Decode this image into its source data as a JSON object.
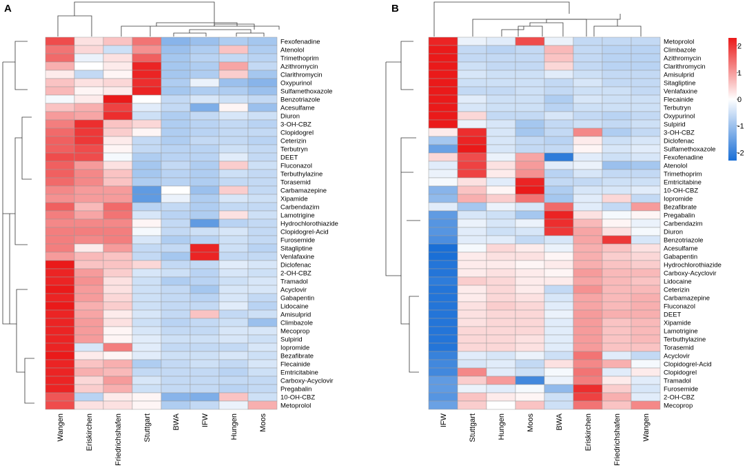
{
  "chart_data": [
    {
      "type": "heatmap",
      "panel_label": "A",
      "scale_range": [
        -2.3,
        2.3
      ],
      "columns": [
        "Wangen",
        "Eriskirchen",
        "Friedrichshafen",
        "Stuttgart",
        "BWA",
        "IFW",
        "Hungen",
        "Moos"
      ],
      "rows": [
        "Fexofenadine",
        "Atenolol",
        "Trimethoprim",
        "Azithromycin",
        "Clarithromycin",
        "Oxypurinol",
        "Sulfamethoxazole",
        "Benzotriazole",
        "Acesulfame",
        "Diuron",
        "3-OH-CBZ",
        "Clopidogrel",
        "Ceterizin",
        "Terbutryn",
        "DEET",
        "Fluconazol",
        "Terbuthylazine",
        "Torasemid",
        "Carbamazepine",
        "Xipamide",
        "Carbendazim",
        "Lamotrigine",
        "Hydrochlorothiazide",
        "Clopidogrel-Acid",
        "Furosemide",
        "Sitagliptine",
        "Venlafaxine",
        "Diclofenac",
        "2-OH-CBZ",
        "Tramadol",
        "Acyclovir",
        "Gabapentin",
        "Lidocaine",
        "Amisulprid",
        "Climbazole",
        "Mecoprop",
        "Sulpirid",
        "Iopromide",
        "Bezafibrate",
        "Flecainide",
        "Emtricitabine",
        "Carboxy-Acyclovir",
        "Pregabalin",
        "10-OH-CBZ",
        "Metoprolol"
      ],
      "values": [
        [
          1.8,
          0.3,
          0.6,
          1.4,
          -1.2,
          -1.0,
          -0.8,
          -0.9
        ],
        [
          1.4,
          0.4,
          -0.5,
          1.1,
          -1.0,
          -0.8,
          0.6,
          -0.8
        ],
        [
          1.5,
          -0.2,
          0.3,
          1.6,
          -0.9,
          -0.7,
          -0.6,
          -0.7
        ],
        [
          0.8,
          0.0,
          0.2,
          2.2,
          -0.9,
          -0.8,
          0.9,
          -0.6
        ],
        [
          0.2,
          -0.6,
          0.1,
          2.2,
          -0.9,
          -0.8,
          0.5,
          -0.9
        ],
        [
          0.6,
          0.3,
          0.4,
          2.1,
          -0.8,
          -0.2,
          -1.0,
          -1.2
        ],
        [
          0.7,
          0.1,
          0.2,
          2.2,
          -0.9,
          -0.8,
          -0.8,
          -1.0
        ],
        [
          -0.1,
          0.2,
          2.3,
          0.0,
          -0.6,
          -0.4,
          -0.5,
          -0.6
        ],
        [
          0.6,
          0.8,
          1.9,
          -0.3,
          -0.6,
          -1.3,
          0.1,
          -1.0
        ],
        [
          1.0,
          0.9,
          2.1,
          -0.5,
          -0.8,
          -0.6,
          -0.4,
          -0.5
        ],
        [
          1.3,
          2.1,
          0.6,
          0.4,
          -0.8,
          -0.7,
          -0.6,
          -0.7
        ],
        [
          1.5,
          2.0,
          0.5,
          0.1,
          -0.8,
          -0.7,
          -0.6,
          -0.6
        ],
        [
          1.6,
          2.0,
          0.2,
          -0.6,
          -0.8,
          -0.6,
          -0.6,
          -0.7
        ],
        [
          1.6,
          1.8,
          0.1,
          -0.6,
          -0.7,
          -0.7,
          -0.5,
          -0.6
        ],
        [
          1.8,
          1.8,
          -0.1,
          -0.8,
          -0.7,
          -0.7,
          -0.3,
          -0.6
        ],
        [
          1.6,
          1.0,
          0.3,
          -0.9,
          -0.6,
          -0.8,
          0.5,
          -0.5
        ],
        [
          1.6,
          1.2,
          0.6,
          -0.9,
          -0.7,
          -0.8,
          -0.5,
          -0.6
        ],
        [
          1.5,
          1.2,
          0.6,
          -0.8,
          -0.7,
          -0.8,
          -0.6,
          -0.6
        ],
        [
          1.2,
          1.0,
          1.0,
          -1.6,
          0.0,
          -1.0,
          0.5,
          -0.6
        ],
        [
          1.1,
          1.0,
          1.0,
          -1.6,
          -0.2,
          -0.8,
          -0.4,
          -0.5
        ],
        [
          1.6,
          0.7,
          1.5,
          -0.7,
          -0.6,
          -0.8,
          -0.6,
          -0.6
        ],
        [
          1.3,
          0.9,
          1.4,
          -0.4,
          -0.7,
          -0.8,
          0.3,
          -0.5
        ],
        [
          1.2,
          1.2,
          1.2,
          0.1,
          -0.6,
          -1.6,
          -0.7,
          -0.6
        ],
        [
          1.3,
          1.3,
          1.3,
          -0.1,
          -0.6,
          -0.5,
          -0.4,
          -0.6
        ],
        [
          1.3,
          1.2,
          1.3,
          -0.4,
          -0.8,
          -0.7,
          -0.5,
          -0.6
        ],
        [
          1.3,
          0.2,
          1.0,
          -0.6,
          -0.6,
          2.2,
          -0.5,
          -0.7
        ],
        [
          1.0,
          0.7,
          0.6,
          -0.6,
          -0.9,
          2.2,
          -0.6,
          -0.6
        ],
        [
          2.3,
          0.6,
          0.6,
          0.4,
          -0.6,
          -0.6,
          -0.3,
          -0.4
        ],
        [
          2.2,
          1.0,
          0.5,
          -0.4,
          -0.5,
          -0.7,
          -0.4,
          -0.5
        ],
        [
          2.2,
          1.1,
          0.3,
          -0.5,
          -0.8,
          -0.7,
          -0.5,
          -0.4
        ],
        [
          2.3,
          1.0,
          0.3,
          -0.5,
          -0.6,
          -0.9,
          -0.4,
          -0.4
        ],
        [
          2.2,
          1.0,
          0.4,
          -0.5,
          -0.6,
          -0.7,
          -0.4,
          -0.6
        ],
        [
          2.3,
          0.8,
          0.5,
          -0.5,
          -0.6,
          -0.6,
          -0.3,
          -0.7
        ],
        [
          2.2,
          0.9,
          0.2,
          -0.4,
          -0.6,
          0.6,
          -0.6,
          -0.5
        ],
        [
          2.2,
          1.0,
          0.3,
          -0.5,
          -0.7,
          -0.6,
          -0.5,
          -1.0
        ],
        [
          2.2,
          1.0,
          0.1,
          -0.4,
          -0.6,
          -0.6,
          -0.4,
          -0.4
        ],
        [
          2.2,
          1.0,
          0.1,
          -0.3,
          -0.5,
          -0.5,
          -0.4,
          -0.5
        ],
        [
          2.2,
          -0.4,
          1.3,
          -0.3,
          -0.6,
          -0.6,
          -0.6,
          -0.4
        ],
        [
          2.3,
          0.2,
          0.1,
          -0.3,
          -0.5,
          -0.5,
          -0.4,
          -0.5
        ],
        [
          2.2,
          0.6,
          0.8,
          -0.8,
          -0.6,
          -0.5,
          -0.6,
          -0.4
        ],
        [
          2.2,
          0.8,
          0.7,
          -0.6,
          -0.6,
          -0.6,
          -0.7,
          -0.5
        ],
        [
          2.2,
          0.4,
          1.0,
          -0.4,
          -0.6,
          -0.6,
          -0.6,
          -0.6
        ],
        [
          2.2,
          0.5,
          0.8,
          -0.5,
          -0.6,
          -0.6,
          -0.7,
          -0.6
        ],
        [
          1.7,
          -0.7,
          0.2,
          0.1,
          -1.2,
          -1.3,
          0.6,
          -0.5
        ],
        [
          1.8,
          0.3,
          0.3,
          0.1,
          -0.8,
          -0.6,
          -0.2,
          0.8
        ]
      ]
    },
    {
      "type": "heatmap",
      "panel_label": "B",
      "scale_range": [
        -2.3,
        2.3
      ],
      "legend": {
        "ticks": [
          "2",
          "1",
          "0",
          "-1",
          "-2"
        ],
        "tick_values": [
          2,
          1,
          0,
          -1,
          -2
        ],
        "placement": "top-right"
      },
      "columns": [
        "IFW",
        "Stuttgart",
        "Hungen",
        "Moos",
        "BWA",
        "Eriskirchen",
        "Friedrichshafen",
        "Wangen"
      ],
      "rows": [
        "Metoprolol",
        "Climbazole",
        "Azithromycin",
        "Clarithromycin",
        "Amisulprid",
        "Sitagliptine",
        "Venlafaxine",
        "Flecainide",
        "Terbutryn",
        "Oxypurinol",
        "Sulpirid",
        "3-OH-CBZ",
        "Diclofenac",
        "Sulfamethoxazole",
        "Fexofenadine",
        "Atenolol",
        "Trimethoprim",
        "Emtricitabine",
        "10-OH-CBZ",
        "Iopromide",
        "Bezafibrate",
        "Pregabalin",
        "Carbendazim",
        "Diuron",
        "Benzotriazole",
        "Acesulfame",
        "Gabapentin",
        "Hydrochlorothiazide",
        "Carboxy-Acyclovir",
        "Lidocaine",
        "Ceterizin",
        "Carbamazepine",
        "Fluconazol",
        "DEET",
        "Xipamide",
        "Lamotrigine",
        "Terbuthylazine",
        "Torasemid",
        "Acyclovir",
        "Clopidogrel-Acid",
        "Clopidogrel",
        "Tramadol",
        "Furosemide",
        "2-OH-CBZ",
        "Mecoprop"
      ],
      "values": [
        [
          2.2,
          -0.2,
          -0.3,
          1.8,
          -0.2,
          -0.6,
          -0.6,
          -0.6
        ],
        [
          2.3,
          -0.6,
          -0.7,
          -0.6,
          0.7,
          -0.6,
          -0.7,
          -0.7
        ],
        [
          2.3,
          -0.6,
          -0.6,
          -0.6,
          0.6,
          -0.6,
          -0.7,
          -0.7
        ],
        [
          2.3,
          -0.5,
          -0.6,
          -0.6,
          0.4,
          -0.6,
          -0.7,
          -0.7
        ],
        [
          2.3,
          -0.4,
          -0.5,
          -0.5,
          -0.3,
          -0.5,
          -0.6,
          -0.6
        ],
        [
          2.3,
          -0.5,
          -0.5,
          -0.5,
          -0.6,
          -0.4,
          -0.6,
          -0.6
        ],
        [
          2.3,
          -0.6,
          -0.6,
          -0.5,
          -0.6,
          -0.5,
          -0.5,
          -0.6
        ],
        [
          2.3,
          -0.3,
          -0.5,
          -0.5,
          -0.8,
          -0.4,
          -0.5,
          -0.5
        ],
        [
          2.3,
          -0.4,
          -0.5,
          -0.5,
          -0.7,
          -0.5,
          -0.5,
          -0.5
        ],
        [
          2.3,
          0.4,
          -0.6,
          -0.6,
          -0.4,
          -0.6,
          -0.7,
          -0.6
        ],
        [
          2.3,
          -0.2,
          -0.4,
          -0.9,
          -0.6,
          -0.5,
          -0.6,
          -0.5
        ],
        [
          0.2,
          2.1,
          -0.4,
          -0.9,
          -0.6,
          1.2,
          -0.8,
          -0.6
        ],
        [
          -0.9,
          2.2,
          -0.4,
          -0.6,
          -0.7,
          0.2,
          -0.5,
          -0.4
        ],
        [
          -1.5,
          2.3,
          -0.4,
          -0.6,
          -0.6,
          0.1,
          -0.4,
          -0.3
        ],
        [
          0.4,
          1.8,
          -0.2,
          0.9,
          -2.1,
          -0.3,
          -0.5,
          -0.4
        ],
        [
          -0.3,
          1.9,
          0.3,
          1.0,
          -0.3,
          -0.2,
          -1.0,
          -0.9
        ],
        [
          -0.2,
          1.9,
          0.2,
          1.1,
          -0.7,
          -0.4,
          -0.6,
          -0.6
        ],
        [
          -0.1,
          0.3,
          -0.3,
          2.2,
          -0.6,
          -0.6,
          -0.5,
          -0.5
        ],
        [
          -1.2,
          0.6,
          0.1,
          2.3,
          -0.8,
          -0.4,
          -0.4,
          -0.3
        ],
        [
          -1.1,
          0.8,
          0.5,
          1.4,
          -0.9,
          -0.3,
          0.4,
          -0.6
        ],
        [
          -0.3,
          -0.9,
          -0.2,
          -0.4,
          1.5,
          -0.3,
          -0.6,
          1.0
        ],
        [
          -1.6,
          -0.4,
          -0.5,
          -0.9,
          2.2,
          0.3,
          -0.1,
          0.1
        ],
        [
          -1.7,
          -0.2,
          -0.4,
          -0.2,
          2.1,
          0.7,
          0.1,
          -0.2
        ],
        [
          -1.7,
          -0.3,
          -0.5,
          -0.4,
          2.0,
          0.9,
          0.3,
          -0.1
        ],
        [
          -1.8,
          -0.3,
          -0.3,
          -0.6,
          -0.4,
          0.9,
          2.0,
          -0.4
        ],
        [
          -2.3,
          -0.1,
          0.4,
          0.2,
          -0.2,
          0.8,
          0.6,
          0.3
        ],
        [
          -2.3,
          0.2,
          0.3,
          0.3,
          0.1,
          0.8,
          0.5,
          0.4
        ],
        [
          -2.2,
          0.2,
          0.2,
          0.1,
          0.2,
          0.8,
          0.6,
          0.5
        ],
        [
          -2.2,
          0.2,
          0.3,
          0.2,
          0.1,
          1.0,
          0.7,
          0.7
        ],
        [
          -2.1,
          0.5,
          0.4,
          0.2,
          0.2,
          0.9,
          0.7,
          0.6
        ],
        [
          -2.2,
          0.2,
          0.4,
          0.2,
          -0.6,
          1.1,
          0.7,
          0.7
        ],
        [
          -2.2,
          0.2,
          0.4,
          0.3,
          -0.4,
          0.9,
          0.7,
          0.8
        ],
        [
          -2.2,
          0.3,
          0.5,
          0.4,
          -0.3,
          0.9,
          0.7,
          0.8
        ],
        [
          -2.2,
          0.3,
          0.4,
          0.4,
          -0.2,
          1.0,
          0.8,
          0.8
        ],
        [
          -2.2,
          0.3,
          0.4,
          0.4,
          -0.3,
          1.0,
          0.6,
          0.7
        ],
        [
          -2.2,
          0.4,
          0.4,
          0.4,
          -0.3,
          1.0,
          0.6,
          0.7
        ],
        [
          -2.2,
          0.4,
          0.4,
          0.3,
          -0.3,
          1.0,
          0.6,
          0.7
        ],
        [
          -2.2,
          0.4,
          0.4,
          0.3,
          -0.3,
          1.0,
          0.6,
          0.6
        ],
        [
          -2.0,
          -0.3,
          -0.4,
          -0.2,
          -0.5,
          1.4,
          -0.3,
          -0.6
        ],
        [
          -1.9,
          -0.4,
          -0.3,
          -0.6,
          0.3,
          1.2,
          0.8,
          -0.1
        ],
        [
          -1.9,
          1.2,
          -0.3,
          -0.5,
          -0.1,
          1.4,
          -0.3,
          0.2
        ],
        [
          -1.6,
          0.5,
          1.0,
          -1.9,
          -0.2,
          1.3,
          0.2,
          -0.3
        ],
        [
          -1.6,
          -0.2,
          -0.3,
          -0.1,
          -1.1,
          2.1,
          0.5,
          -0.4
        ],
        [
          -1.7,
          0.6,
          0.2,
          0.1,
          -0.5,
          1.9,
          0.8,
          -0.3
        ],
        [
          -1.5,
          0.5,
          0.0,
          0.6,
          -0.5,
          1.4,
          0.6,
          1.2
        ]
      ]
    }
  ]
}
